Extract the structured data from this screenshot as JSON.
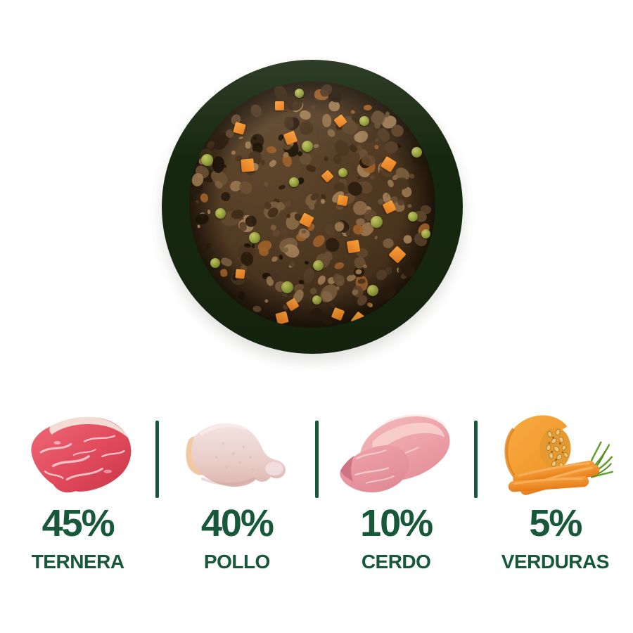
{
  "product": {
    "description": "Top view of a green bowl filled with minced meat dog food topped with green peas and orange carrot cubes",
    "bowl_contents": [
      "minced meat",
      "peas",
      "carrot cubes"
    ]
  },
  "ingredients": [
    {
      "percent": "45%",
      "name": "TERNERA",
      "icon": "beef-icon"
    },
    {
      "percent": "40%",
      "name": "POLLO",
      "icon": "chicken-drumstick-icon"
    },
    {
      "percent": "10%",
      "name": "CERDO",
      "icon": "pork-icon"
    },
    {
      "percent": "5%",
      "name": "VERDURAS",
      "icon": "pumpkin-carrots-icon"
    }
  ],
  "colors": {
    "text_green": "#17583a",
    "divider_green": "#17583a",
    "bowl_green": "#4b7141",
    "food_brown": "#4a3420",
    "pea_green": "#9aa440",
    "carrot_orange": "#ee8b2a",
    "background": "#ffffff"
  }
}
